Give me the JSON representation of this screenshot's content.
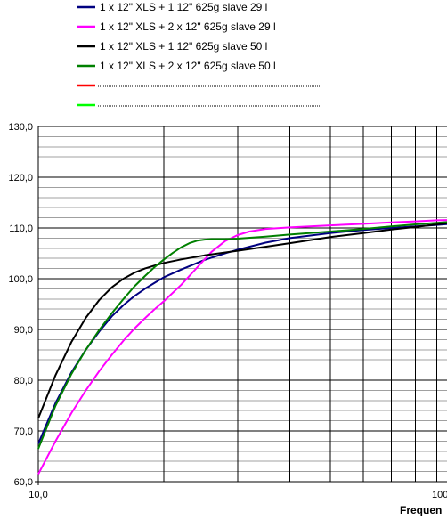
{
  "chart_data": {
    "type": "line",
    "xlabel": "Frequen",
    "ylabel": "",
    "x_scale": "log",
    "xlim": [
      10,
      100
    ],
    "ylim": [
      60,
      130
    ],
    "grid": true,
    "legend_position": "top-left",
    "x_tick_labels": [
      "10,0",
      "100,"
    ],
    "y_tick_labels": [
      "60,0",
      "70,0",
      "80,0",
      "90,0",
      "100,0",
      "110,0",
      "120,0",
      "130,0"
    ],
    "series": [
      {
        "name": "1 x 12\" XLS + 1 12\" 625g slave 29 l",
        "color": "#000080",
        "x": [
          10,
          11,
          12,
          13,
          14,
          15,
          16,
          17,
          18,
          19,
          20,
          22,
          25,
          28,
          30,
          35,
          40,
          50,
          60,
          70,
          80,
          90,
          100
        ],
        "y": [
          67.5,
          75.5,
          81.5,
          86.0,
          89.6,
          92.6,
          94.8,
          96.6,
          98.0,
          99.2,
          100.3,
          101.8,
          103.7,
          105.0,
          105.7,
          107.1,
          108.0,
          109.0,
          109.6,
          110.0,
          110.3,
          110.6,
          110.9
        ]
      },
      {
        "name": "1 x 12\" XLS + 2 x 12\" 625g slave 29 l",
        "color": "#ff00ff",
        "x": [
          10,
          11,
          12,
          13,
          14,
          15,
          16,
          17,
          18,
          19,
          20,
          22,
          24,
          26,
          28,
          30,
          32,
          35,
          40,
          50,
          60,
          70,
          80,
          90,
          100
        ],
        "y": [
          61.5,
          68.0,
          73.5,
          78.0,
          81.8,
          85.0,
          87.8,
          90.2,
          92.2,
          94.0,
          95.6,
          98.8,
          102.2,
          105.3,
          107.4,
          108.6,
          109.3,
          109.8,
          110.1,
          110.5,
          110.8,
          111.1,
          111.3,
          111.5,
          111.6
        ]
      },
      {
        "name": "1 x 12\" XLS + 1 12\" 625g slave 50 l",
        "color": "#000000",
        "x": [
          10,
          11,
          12,
          13,
          14,
          15,
          16,
          17,
          18,
          19,
          20,
          22,
          25,
          30,
          35,
          40,
          50,
          60,
          70,
          80,
          90,
          100
        ],
        "y": [
          72.5,
          81.0,
          87.5,
          92.3,
          95.8,
          98.3,
          100.0,
          101.2,
          102.0,
          102.6,
          103.1,
          103.8,
          104.6,
          105.5,
          106.3,
          107.0,
          108.2,
          109.0,
          109.7,
          110.2,
          110.7,
          111.1
        ]
      },
      {
        "name": "1 x 12\" XLS + 2 x 12\" 625g slave 50 l",
        "color": "#008000",
        "x": [
          10,
          11,
          12,
          13,
          14,
          15,
          16,
          17,
          18,
          19,
          20,
          21,
          22,
          23,
          24,
          25,
          26,
          28,
          30,
          35,
          40,
          50,
          60,
          70,
          80,
          90,
          100
        ],
        "y": [
          66.5,
          75.0,
          81.2,
          86.0,
          89.9,
          93.2,
          96.0,
          98.5,
          100.5,
          102.3,
          103.8,
          105.1,
          106.2,
          107.0,
          107.5,
          107.7,
          107.8,
          107.8,
          107.9,
          108.3,
          108.7,
          109.3,
          109.8,
          110.3,
          110.7,
          111.0,
          111.3
        ]
      },
      {
        "name": "",
        "color": "#ff0000",
        "x": [],
        "y": []
      },
      {
        "name": "",
        "color": "#00ff00",
        "x": [],
        "y": []
      }
    ]
  }
}
